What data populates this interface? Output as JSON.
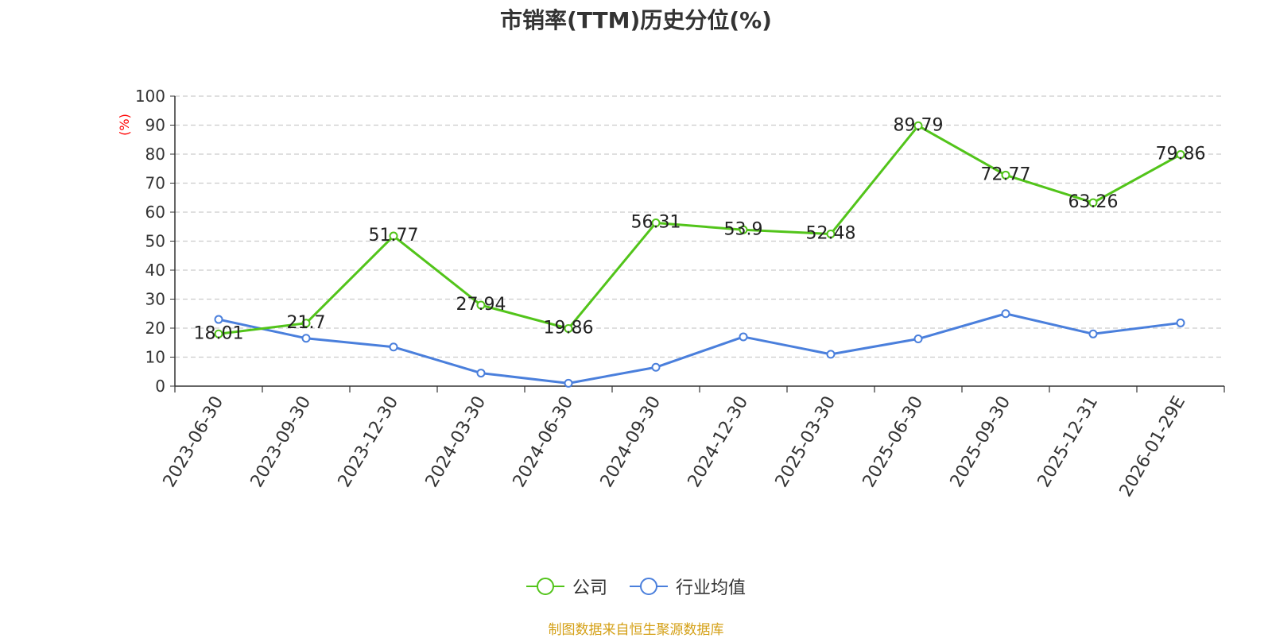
{
  "title": "市销率(TTM)历史分位(%)",
  "source_note": "制图数据来自恒生聚源数据库",
  "colors": {
    "company": "#52c41a",
    "industry": "#4a7fdc",
    "ylabel": "#ff0000",
    "source": "#d4a017"
  },
  "legend": {
    "company": "公司",
    "industry": "行业均值"
  },
  "chart_data": {
    "type": "line",
    "title": "市销率(TTM)历史分位(%)",
    "ylabel": "(%)",
    "xlabel": "",
    "ylim": [
      0,
      100
    ],
    "yticks": [
      0,
      10,
      20,
      30,
      40,
      50,
      60,
      70,
      80,
      90,
      100
    ],
    "grid": true,
    "legend_position": "bottom",
    "categories": [
      "2023-06-30",
      "2023-09-30",
      "2023-12-30",
      "2024-03-30",
      "2024-06-30",
      "2024-09-30",
      "2024-12-30",
      "2025-03-30",
      "2025-06-30",
      "2025-09-30",
      "2025-12-31",
      "2026-01-29E"
    ],
    "series": [
      {
        "name": "公司",
        "values": [
          18.01,
          21.7,
          51.77,
          27.94,
          19.86,
          56.31,
          53.9,
          52.48,
          89.79,
          72.77,
          63.26,
          79.86
        ],
        "labels": [
          "18.01",
          "21.7",
          "51.77",
          "27.94",
          "19.86",
          "56.31",
          "53.9",
          "52.48",
          "89.79",
          "72.77",
          "63.26",
          "79.86"
        ]
      },
      {
        "name": "行业均值",
        "values": [
          23.0,
          16.5,
          13.5,
          4.5,
          1.0,
          6.5,
          17.0,
          11.0,
          16.3,
          25.0,
          18.0,
          21.8
        ]
      }
    ]
  }
}
